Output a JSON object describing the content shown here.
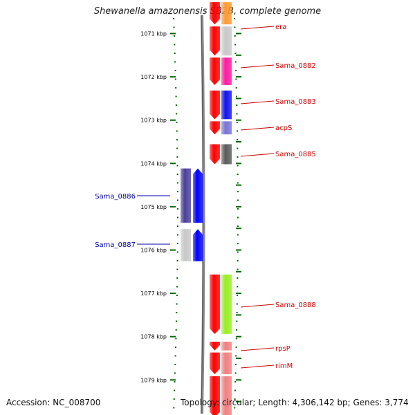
{
  "title": "Shewanella amazonensis SB2B, complete genome",
  "accession": "Accession: NC_008700",
  "topology": "Topology: circular; Length: 4,306,142 bp; Genes: 3,774",
  "colors": {
    "forward": "#ff0000",
    "reverse": "#0000ff",
    "cog_grey": "#c8c8c8",
    "cog_magenta": "#ff1aa0",
    "cog_blue": "#1111ee",
    "cog_lavender": "#7a72d6",
    "cog_darkgrey": "#5a5a5a",
    "cog_navy": "#4a3f9a",
    "cog_lime": "#99ee22",
    "cog_salmon": "#f08080",
    "cog_orange": "#ff9933",
    "label_right": "#cc0000",
    "label_left": "#0000aa",
    "tick": "#006600"
  },
  "ticks": [
    {
      "kbp": 1071,
      "label": "1071 kbp"
    },
    {
      "kbp": 1072,
      "label": "1072 kbp"
    },
    {
      "kbp": 1073,
      "label": "1073 kbp"
    },
    {
      "kbp": 1074,
      "label": "1074 kbp"
    },
    {
      "kbp": 1075,
      "label": "1075 kbp"
    },
    {
      "kbp": 1076,
      "label": "1076 kbp"
    },
    {
      "kbp": 1077,
      "label": "1077 kbp"
    },
    {
      "kbp": 1078,
      "label": "1078 kbp"
    },
    {
      "kbp": 1079,
      "label": "1079 kbp"
    }
  ],
  "genes": [
    {
      "name": "",
      "start": 1070.26,
      "end": 1070.82,
      "strand": "+",
      "cog": "cog_orange"
    },
    {
      "name": "era",
      "start": 1070.82,
      "end": 1071.54,
      "strand": "+",
      "cog": "cog_grey"
    },
    {
      "name": "Sama_0882",
      "start": 1071.54,
      "end": 1072.22,
      "strand": "+",
      "cog": "cog_magenta"
    },
    {
      "name": "Sama_0883",
      "start": 1072.3,
      "end": 1073.01,
      "strand": "+",
      "cog": "cog_blue"
    },
    {
      "name": "acpS",
      "start": 1073.01,
      "end": 1073.36,
      "strand": "+",
      "cog": "cog_lavender"
    },
    {
      "name": "Sama_0885",
      "start": 1073.54,
      "end": 1074.05,
      "strand": "+",
      "cog": "cog_darkgrey"
    },
    {
      "name": "Sama_0886",
      "start": 1074.1,
      "end": 1075.4,
      "strand": "-",
      "cog": "cog_navy"
    },
    {
      "name": "Sama_0887",
      "start": 1075.5,
      "end": 1076.29,
      "strand": "-",
      "cog": "cog_grey"
    },
    {
      "name": "Sama_0888",
      "start": 1076.55,
      "end": 1077.97,
      "strand": "+",
      "cog": "cog_lime"
    },
    {
      "name": "rpsP",
      "start": 1078.1,
      "end": 1078.35,
      "strand": "+",
      "cog": "cog_salmon"
    },
    {
      "name": "rimM",
      "start": 1078.35,
      "end": 1078.9,
      "strand": "+",
      "cog": "cog_salmon"
    },
    {
      "name": "",
      "start": 1078.9,
      "end": 1079.9,
      "strand": "+",
      "cog": "cog_salmon"
    }
  ]
}
